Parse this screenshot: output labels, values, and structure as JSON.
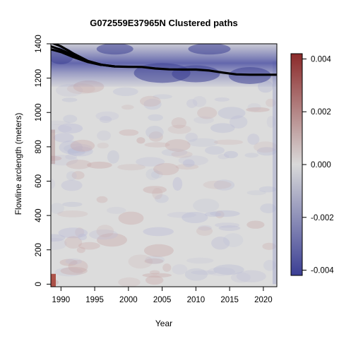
{
  "chart_data": {
    "type": "heatmap",
    "title": "G072559E37965N Clustered paths",
    "xlabel": "Year",
    "ylabel": "Flowline arclength (meters)",
    "xlim": [
      1988.5,
      2022
    ],
    "ylim": [
      -15,
      1400
    ],
    "x_ticks": [
      1990,
      1995,
      2000,
      2005,
      2010,
      2015,
      2020
    ],
    "y_ticks": [
      0,
      200,
      400,
      600,
      800,
      1000,
      1200,
      1400
    ],
    "colorbar": {
      "range": [
        -0.0042,
        0.0042
      ],
      "ticks": [
        0.004,
        0.002,
        0.0,
        -0.002,
        -0.004
      ],
      "tick_labels": [
        "0.004",
        "0.002",
        "0.000",
        "-0.002",
        "-0.004"
      ],
      "colors": [
        "#3b3f94",
        "#d9d9d9",
        "#8b2a2a"
      ]
    },
    "series": [
      {
        "x": [
          1988.5,
          1990,
          1992,
          1994,
          1996,
          1998,
          2000,
          2002,
          2004,
          2006,
          2008,
          2010,
          2012,
          2014,
          2016,
          2018,
          2020,
          2022
        ],
        "y": [
          1408,
          1385,
          1340,
          1300,
          1278,
          1268,
          1266,
          1265,
          1256,
          1251,
          1250,
          1250,
          1244,
          1232,
          1222,
          1220,
          1220,
          1220
        ]
      },
      {
        "x": [
          1988.5,
          1990,
          1992,
          1994,
          1996,
          1998
        ],
        "y": [
          1385,
          1365,
          1330,
          1298,
          1278,
          1268
        ]
      },
      {
        "x": [
          1988.5,
          1990,
          1992,
          1994,
          1996
        ],
        "y": [
          1368,
          1352,
          1320,
          1294,
          1276
        ]
      }
    ]
  }
}
